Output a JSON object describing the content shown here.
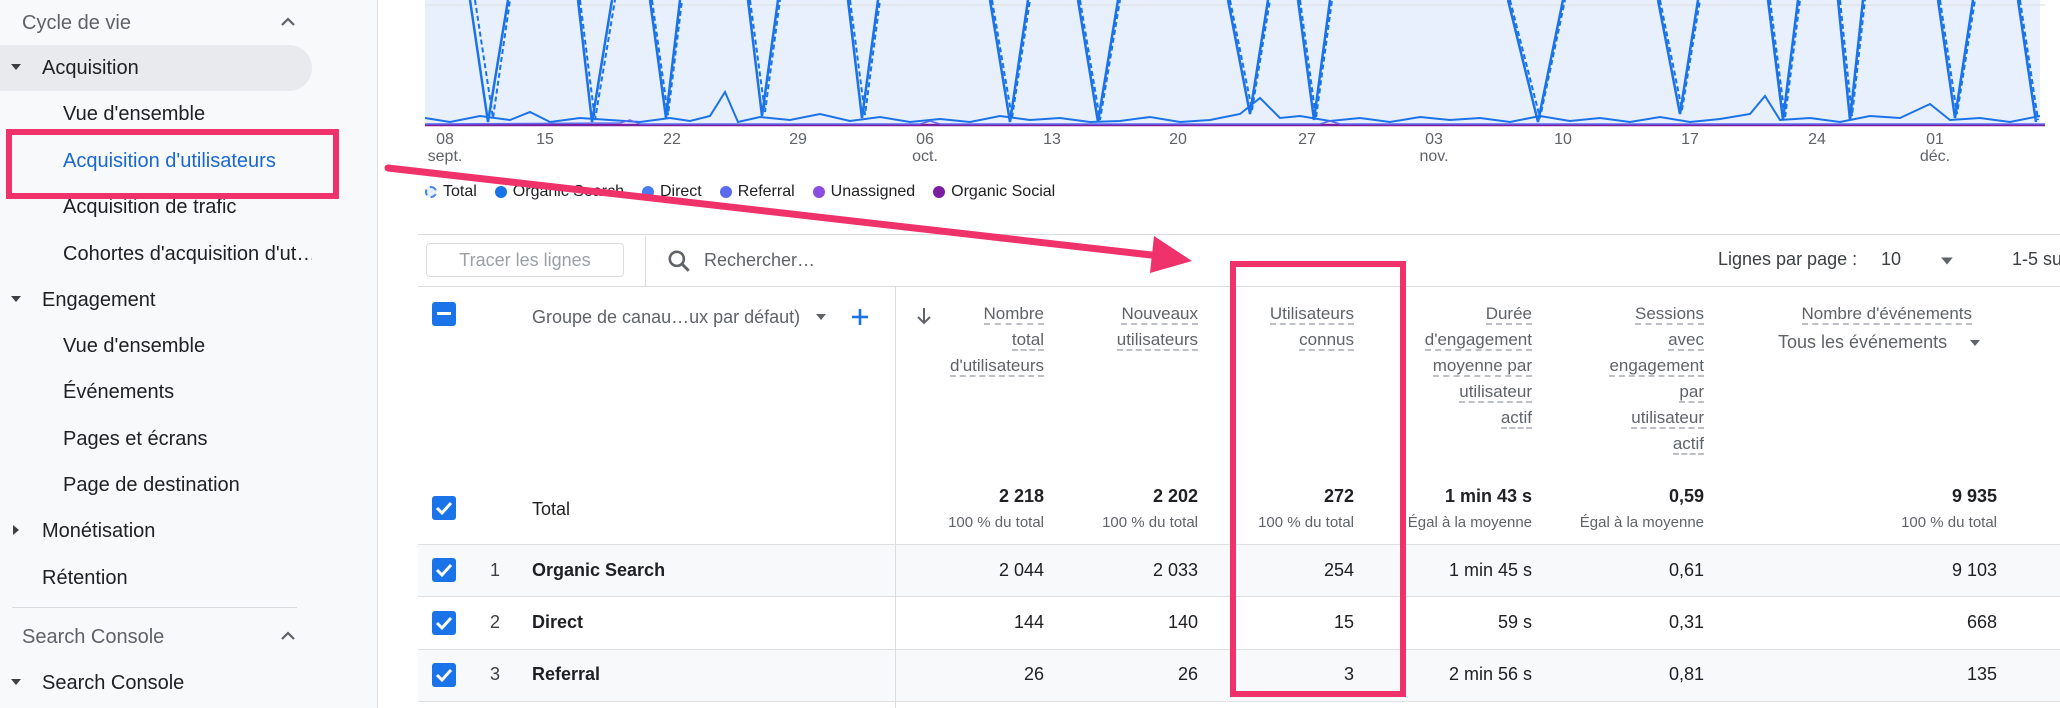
{
  "sidebar": {
    "section_lifecycle": "Cycle de vie",
    "group_acquisition": "Acquisition",
    "acq_items": [
      "Vue d'ensemble",
      "Acquisition d'utilisateurs",
      "Acquisition de trafic",
      "Cohortes d'acquisition d'ut…"
    ],
    "group_engagement": "Engagement",
    "eng_items": [
      "Vue d'ensemble",
      "Événements",
      "Pages et écrans",
      "Page de destination"
    ],
    "group_monetisation": "Monétisation",
    "retention": "Rétention",
    "section_search_console": "Search Console",
    "group_search_console": "Search Console"
  },
  "chart": {
    "x_ticks": [
      {
        "day": "08",
        "month": "sept."
      },
      {
        "day": "15",
        "month": ""
      },
      {
        "day": "22",
        "month": ""
      },
      {
        "day": "29",
        "month": ""
      },
      {
        "day": "06",
        "month": "oct."
      },
      {
        "day": "13",
        "month": ""
      },
      {
        "day": "20",
        "month": ""
      },
      {
        "day": "27",
        "month": ""
      },
      {
        "day": "03",
        "month": "nov."
      },
      {
        "day": "10",
        "month": ""
      },
      {
        "day": "17",
        "month": ""
      },
      {
        "day": "24",
        "month": ""
      },
      {
        "day": "01",
        "month": "déc."
      }
    ],
    "legend": [
      {
        "label": "Total",
        "color": "#4285f4",
        "style": "dashed-ring"
      },
      {
        "label": "Organic Search",
        "color": "#1a73e8",
        "style": "dot"
      },
      {
        "label": "Direct",
        "color": "#4a7bf0",
        "style": "dot"
      },
      {
        "label": "Referral",
        "color": "#5c6bf0",
        "style": "dot"
      },
      {
        "label": "Unassigned",
        "color": "#8a4fe0",
        "style": "dot"
      },
      {
        "label": "Organic Social",
        "color": "#7b1fa2",
        "style": "dot"
      }
    ]
  },
  "toolbar": {
    "plot_rows": "Tracer les lignes",
    "search_placeholder": "Rechercher…",
    "rows_per_page_label": "Lignes par page :",
    "rows_per_page_value": "10",
    "pager": "1-5 su"
  },
  "table": {
    "dimension_header": "Groupe de canau…ux par défaut)",
    "col_total_users": [
      "Nombre",
      "total",
      "d'utilisateurs"
    ],
    "col_new_users": [
      "Nouveaux",
      "utilisateurs"
    ],
    "col_known_users": [
      "Utilisateurs",
      "connus"
    ],
    "col_engagement": [
      "Durée",
      "d'engagement",
      "moyenne par",
      "utilisateur",
      "actif"
    ],
    "col_sessions": [
      "Sessions",
      "avec",
      "engagement",
      "par",
      "utilisateur",
      "actif"
    ],
    "col_events": "Nombre d'événements",
    "col_events_filter": "Tous les événements",
    "total": {
      "label": "Total",
      "total_users": "2 218",
      "total_users_sub": "100 % du total",
      "new_users": "2 202",
      "new_users_sub": "100 % du total",
      "known_users": "272",
      "known_users_sub": "100 % du total",
      "engagement": "1 min 43 s",
      "engagement_sub": "Égal à la moyenne",
      "sessions": "0,59",
      "sessions_sub": "Égal à la moyenne",
      "events": "9 935",
      "events_sub": "100 % du total"
    },
    "rows": [
      {
        "rank": "1",
        "name": "Organic Search",
        "total_users": "2 044",
        "new_users": "2 033",
        "known_users": "254",
        "engagement": "1 min 45 s",
        "sessions": "0,61",
        "events": "9 103"
      },
      {
        "rank": "2",
        "name": "Direct",
        "total_users": "144",
        "new_users": "140",
        "known_users": "15",
        "engagement": "59 s",
        "sessions": "0,31",
        "events": "668"
      },
      {
        "rank": "3",
        "name": "Referral",
        "total_users": "26",
        "new_users": "26",
        "known_users": "3",
        "engagement": "2 min 56 s",
        "sessions": "0,81",
        "events": "135"
      }
    ]
  },
  "colors": {
    "accent": "#1a73e8",
    "annotation": "#f0326a",
    "chart_fill": "#e8f0fe",
    "organic_social": "#7b1fa2"
  }
}
